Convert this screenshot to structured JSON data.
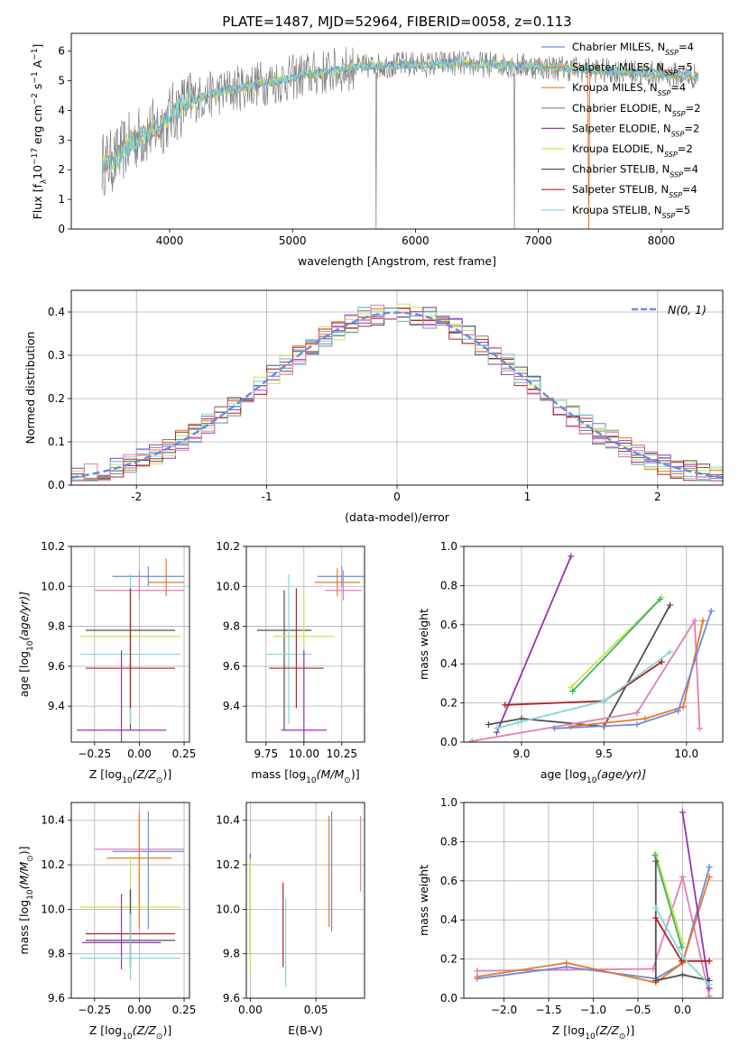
{
  "figure_title": "PLATE=1487, MJD=52964, FIBERID=0058, z=0.113",
  "colors": {
    "chabrier_miles": "#6a8ddb",
    "salpeter_miles": "#e8782a",
    "kroupa_miles": "#e57b2f",
    "chabrier_elodie": "#808080",
    "salpeter_elodie": "#9b32b0",
    "kroupa_elodie": "#c8e64a",
    "chabrier_stelib": "#505050",
    "salpeter_stelib": "#b22222",
    "kroupa_stelib": "#7fd8d8",
    "pink": "#e17fb4",
    "normal_curve": "#6a8ddb",
    "grid": "#b0b0b0"
  },
  "chart_data": [
    {
      "id": "spectrum",
      "type": "line",
      "xlabel": "wavelength [Angstrom, rest frame]",
      "ylabel": "Flux [f",
      "ylabel_lambda": "λ",
      "ylabel_rest": "10",
      "ylabel_exp1": "−17",
      "ylabel_mid": " erg cm",
      "ylabel_exp2": "−2",
      "ylabel_s": " s",
      "ylabel_exp3": "−1",
      "ylabel_a": " A",
      "ylabel_exp4": "−1",
      "ylabel_end": "]",
      "xlim": [
        3200,
        8500
      ],
      "ylim": [
        0,
        6.6
      ],
      "xticks": [
        4000,
        5000,
        6000,
        7000,
        8000
      ],
      "yticks": [
        0,
        1,
        2,
        3,
        4,
        5,
        6
      ],
      "legend_position": "top-right",
      "legend": [
        {
          "name": "Chabrier MILES, N",
          "sub": "SSP",
          "suffix": "=4",
          "color": "#6a8ddb"
        },
        {
          "name": "Salpeter MILES, N",
          "sub": "SSP",
          "suffix": "=5",
          "color": "#e8782a"
        },
        {
          "name": "Kroupa MILES, N",
          "sub": "SSP",
          "suffix": "=4",
          "color": "#e57b2f"
        },
        {
          "name": "Chabrier ELODIE, N",
          "sub": "SSP",
          "suffix": "=2",
          "color": "#808080"
        },
        {
          "name": "Salpeter ELODIE, N",
          "sub": "SSP",
          "suffix": "=2",
          "color": "#9b32b0"
        },
        {
          "name": "Kroupa ELODIE, N",
          "sub": "SSP",
          "suffix": "=2",
          "color": "#c8e64a"
        },
        {
          "name": "Chabrier STELIB, N",
          "sub": "SSP",
          "suffix": "=4",
          "color": "#505050"
        },
        {
          "name": "Salpeter STELIB, N",
          "sub": "SSP",
          "suffix": "=4",
          "color": "#b22222"
        },
        {
          "name": "Kroupa STELIB, N",
          "sub": "SSP",
          "suffix": "=5",
          "color": "#7fd8d8"
        }
      ],
      "continuum": {
        "x": [
          3450,
          3550,
          3650,
          3750,
          3850,
          3950,
          4050,
          4150,
          4300,
          4500,
          4700,
          4900,
          5100,
          5300,
          5500,
          5700,
          5900,
          6100,
          6300,
          6500,
          6700,
          6900,
          7100,
          7300,
          7500,
          7700,
          7900,
          8100,
          8300
        ],
        "y": [
          2.2,
          2.3,
          2.8,
          3.1,
          3.3,
          3.6,
          4.0,
          4.3,
          4.5,
          4.7,
          4.9,
          5.0,
          5.2,
          5.3,
          5.45,
          5.5,
          5.55,
          5.55,
          5.6,
          5.55,
          5.55,
          5.5,
          5.45,
          5.4,
          5.35,
          5.3,
          5.25,
          5.2,
          5.15
        ]
      }
    },
    {
      "id": "residuals",
      "type": "bar",
      "xlabel": "(data-model)/error",
      "ylabel": "Normed distribution",
      "xlim": [
        -2.5,
        2.5
      ],
      "ylim": [
        0,
        0.45
      ],
      "xticks": [
        -2,
        -1,
        0,
        1,
        2
      ],
      "yticks": [
        0.0,
        0.1,
        0.2,
        0.3,
        0.4
      ],
      "legend_position": "top-right",
      "legend": [
        {
          "name": "N(0, 1)",
          "color": "#6a8ddb"
        }
      ]
    },
    {
      "id": "age_vs_Z",
      "type": "scatter",
      "xlabel": "Z [log",
      "xlabel_sub": "10",
      "xlabel_rest": "(Z/Z",
      "xlabel_sun": "⊙",
      "xlabel_end": ")]",
      "ylabel": "age  [log",
      "ylabel_sub": "10",
      "ylabel_rest": "(age/yr)]",
      "xlim": [
        -0.38,
        0.28
      ],
      "ylim": [
        9.22,
        10.2
      ],
      "xticks": [
        -0.25,
        0.0,
        0.25
      ],
      "xticklabels": [
        "−0.25",
        "0.00",
        "0.25"
      ],
      "yticks": [
        9.4,
        9.6,
        9.8,
        10.0,
        10.2
      ],
      "points": [
        {
          "x": 0.05,
          "y": 10.05,
          "xerr": 0.2,
          "yerr": [
            0.05,
            0.05
          ],
          "color": "#6a8ddb"
        },
        {
          "x": 0.15,
          "y": 10.02,
          "xerr": 0.1,
          "yerr": [
            0.07,
            0.12
          ],
          "color": "#e8782a"
        },
        {
          "x": 0.0,
          "y": 9.98,
          "xerr": 0.25,
          "yerr": [
            0.05,
            0.1
          ],
          "color": "#e17fb4"
        },
        {
          "x": -0.05,
          "y": 9.78,
          "xerr": 0.25,
          "yerr": [
            0.5,
            0.2
          ],
          "color": "#505050"
        },
        {
          "x": -0.05,
          "y": 9.75,
          "xerr": 0.28,
          "yerr": [
            0.2,
            0.2
          ],
          "color": "#c8e64a"
        },
        {
          "x": -0.05,
          "y": 9.66,
          "xerr": 0.28,
          "yerr": [
            0.35,
            0.4
          ],
          "color": "#7fd8d8"
        },
        {
          "x": -0.05,
          "y": 9.59,
          "xerr": 0.25,
          "yerr": [
            0.2,
            0.4
          ],
          "color": "#b22222"
        },
        {
          "x": -0.1,
          "y": 9.28,
          "xerr": 0.25,
          "yerr": [
            0.1,
            0.4
          ],
          "color": "#9b32b0"
        }
      ]
    },
    {
      "id": "age_vs_mass",
      "type": "scatter",
      "xlabel": "mass [log",
      "xlabel_sub": "10",
      "xlabel_rest": "(M/M",
      "xlabel_sun": "⊙",
      "xlabel_end": ")]",
      "xlim": [
        9.62,
        10.4
      ],
      "ylim": [
        9.22,
        10.2
      ],
      "xticks": [
        9.75,
        10.0,
        10.25
      ],
      "xticklabels": [
        "9.75",
        "10.00",
        "10.25"
      ],
      "yticks": [
        9.4,
        9.6,
        9.8,
        10.0,
        10.2
      ],
      "points": [
        {
          "x": 10.25,
          "y": 10.05,
          "xerr": 0.16,
          "yerr": [
            0.05,
            0.05
          ],
          "color": "#6a8ddb"
        },
        {
          "x": 10.22,
          "y": 10.02,
          "xerr": 0.15,
          "yerr": [
            0.07,
            0.07
          ],
          "color": "#e8782a"
        },
        {
          "x": 10.26,
          "y": 9.98,
          "xerr": 0.12,
          "yerr": [
            0.05,
            0.1
          ],
          "color": "#e17fb4"
        },
        {
          "x": 9.87,
          "y": 9.78,
          "xerr": 0.18,
          "yerr": [
            0.5,
            0.2
          ],
          "color": "#505050"
        },
        {
          "x": 10.0,
          "y": 9.75,
          "xerr": 0.2,
          "yerr": [
            0.2,
            0.2
          ],
          "color": "#c8e64a"
        },
        {
          "x": 9.9,
          "y": 9.66,
          "xerr": 0.15,
          "yerr": [
            0.35,
            0.4
          ],
          "color": "#7fd8d8"
        },
        {
          "x": 9.95,
          "y": 9.59,
          "xerr": 0.18,
          "yerr": [
            0.2,
            0.4
          ],
          "color": "#b22222"
        },
        {
          "x": 10.0,
          "y": 9.28,
          "xerr": 0.15,
          "yerr": [
            0.1,
            0.4
          ],
          "color": "#9b32b0"
        }
      ]
    },
    {
      "id": "weight_vs_age",
      "type": "line",
      "xlabel": "age  [log",
      "xlabel_sub": "10",
      "xlabel_rest": "(age/yr)]",
      "ylabel": "mass weight",
      "xlim": [
        8.65,
        10.22
      ],
      "ylim": [
        0,
        1.0
      ],
      "xticks": [
        9.0,
        9.5,
        10.0
      ],
      "xticklabels": [
        "9.0",
        "9.5",
        "10.0"
      ],
      "yticks": [
        0.0,
        0.2,
        0.4,
        0.6,
        0.8,
        1.0
      ],
      "series": [
        {
          "color": "#9b32b0",
          "x": [
            8.85,
            9.3
          ],
          "y": [
            0.05,
            0.95
          ]
        },
        {
          "color": "#c8e64a",
          "x": [
            9.3,
            9.85
          ],
          "y": [
            0.28,
            0.74
          ]
        },
        {
          "color": "#3cb371",
          "x": [
            9.31,
            9.84
          ],
          "y": [
            0.26,
            0.73
          ]
        },
        {
          "color": "#505050",
          "x": [
            8.8,
            9.0,
            9.5,
            9.9
          ],
          "y": [
            0.09,
            0.12,
            0.08,
            0.7
          ]
        },
        {
          "color": "#b22222",
          "x": [
            8.9,
            9.5,
            9.85
          ],
          "y": [
            0.19,
            0.21,
            0.41
          ]
        },
        {
          "color": "#7fd8d8",
          "x": [
            8.85,
            8.98,
            9.5,
            9.9
          ],
          "y": [
            0.07,
            0.1,
            0.21,
            0.46
          ]
        },
        {
          "color": "#e17fb4",
          "x": [
            8.7,
            9.7,
            10.05,
            10.08
          ],
          "y": [
            0.005,
            0.15,
            0.62,
            0.07
          ]
        },
        {
          "color": "#e8782a",
          "x": [
            9.3,
            9.75,
            9.98,
            10.1
          ],
          "y": [
            0.08,
            0.12,
            0.18,
            0.62
          ]
        },
        {
          "color": "#6a8ddb",
          "x": [
            9.2,
            9.7,
            9.95,
            10.15
          ],
          "y": [
            0.07,
            0.09,
            0.16,
            0.67
          ]
        }
      ]
    },
    {
      "id": "mass_vs_Z",
      "type": "scatter",
      "xlabel": "Z [log",
      "xlabel_sub": "10",
      "xlabel_rest": "(Z/Z",
      "xlabel_sun": "⊙",
      "xlabel_end": ")]",
      "ylabel": "mass [log",
      "ylabel_sub": "10",
      "ylabel_rest": "(M/M",
      "ylabel_sun": "⊙",
      "ylabel_end": ")]",
      "xlim": [
        -0.38,
        0.28
      ],
      "ylim": [
        9.6,
        10.48
      ],
      "xticks": [
        -0.25,
        0.0,
        0.25
      ],
      "xticklabels": [
        "−0.25",
        "0.00",
        "0.25"
      ],
      "yticks": [
        9.6,
        9.8,
        10.0,
        10.2,
        10.4
      ],
      "points": [
        {
          "x": 0.0,
          "y": 10.27,
          "xerr": 0.25,
          "yerr": [
            0.3,
            0.18
          ],
          "color": "#e17fb4"
        },
        {
          "x": 0.05,
          "y": 10.26,
          "xerr": 0.2,
          "yerr": [
            0.35,
            0.18
          ],
          "color": "#6a8ddb"
        },
        {
          "x": 0.0,
          "y": 10.23,
          "xerr": 0.18,
          "yerr": [
            0.32,
            0.2
          ],
          "color": "#e8782a"
        },
        {
          "x": -0.05,
          "y": 10.01,
          "xerr": 0.28,
          "yerr": [
            0.25,
            0.23
          ],
          "color": "#c8e64a"
        },
        {
          "x": -0.05,
          "y": 9.89,
          "xerr": 0.25,
          "yerr": [
            0.15,
            0.2
          ],
          "color": "#b22222"
        },
        {
          "x": -0.05,
          "y": 9.86,
          "xerr": 0.25,
          "yerr": [
            0.12,
            0.22
          ],
          "color": "#505050"
        },
        {
          "x": -0.1,
          "y": 9.85,
          "xerr": 0.22,
          "yerr": [
            0.12,
            0.22
          ],
          "color": "#9b32b0"
        },
        {
          "x": -0.05,
          "y": 9.78,
          "xerr": 0.28,
          "yerr": [
            0.1,
            0.2
          ],
          "color": "#7fd8d8"
        }
      ]
    },
    {
      "id": "mass_vs_EBV",
      "type": "scatter",
      "xlabel": "E(B-V)",
      "xlim": [
        -0.003,
        0.087
      ],
      "ylim": [
        9.6,
        10.48
      ],
      "xticks": [
        0.0,
        0.05
      ],
      "xticklabels": [
        "0.00",
        "0.05"
      ],
      "yticks": [
        9.6,
        9.8,
        10.0,
        10.2,
        10.4
      ],
      "points": [
        {
          "x": 0.0,
          "y": 10.1,
          "yerr": [
            0.3,
            0.15
          ],
          "color": "#9b32b0"
        },
        {
          "x": 0.0,
          "y": 9.98,
          "yerr": [
            0.25,
            0.25
          ],
          "color": "#c8e64a"
        },
        {
          "x": 0.025,
          "y": 9.92,
          "yerr": [
            0.18,
            0.2
          ],
          "color": "#b22222"
        },
        {
          "x": 0.027,
          "y": 9.85,
          "yerr": [
            0.2,
            0.2
          ],
          "color": "#7fd8d8"
        },
        {
          "x": 0.06,
          "y": 10.17,
          "yerr": [
            0.25,
            0.25
          ],
          "color": "#e8782a"
        },
        {
          "x": 0.062,
          "y": 10.17,
          "yerr": [
            0.27,
            0.27
          ],
          "color": "#6a8ddb"
        },
        {
          "x": 0.084,
          "y": 10.25,
          "yerr": [
            0.17,
            0.17
          ],
          "color": "#e17fb4"
        }
      ]
    },
    {
      "id": "weight_vs_Z",
      "type": "line",
      "xlabel": "Z [log",
      "xlabel_sub": "10",
      "xlabel_rest": "(Z/Z",
      "xlabel_sun": "⊙",
      "xlabel_end": ")]",
      "ylabel": "mass weight",
      "xlim": [
        -2.45,
        0.45
      ],
      "ylim": [
        0,
        1.0
      ],
      "xticks": [
        -2.0,
        -1.5,
        -1.0,
        -0.5,
        0.0
      ],
      "xticklabels": [
        "−2.0",
        "−1.5",
        "−1.0",
        "−0.5",
        "0.0"
      ],
      "yticks": [
        0.0,
        0.2,
        0.4,
        0.6,
        0.8,
        1.0
      ],
      "series": [
        {
          "color": "#e17fb4",
          "x": [
            -2.3,
            -0.33,
            0.0,
            0.3
          ],
          "y": [
            0.14,
            0.15,
            0.62,
            0.01
          ]
        },
        {
          "color": "#6a8ddb",
          "x": [
            -2.3,
            -1.3,
            -0.3,
            0.0,
            0.3
          ],
          "y": [
            0.1,
            0.16,
            0.1,
            0.18,
            0.67
          ]
        },
        {
          "color": "#e8782a",
          "x": [
            -2.3,
            -1.3,
            -0.3,
            0.0,
            0.3
          ],
          "y": [
            0.11,
            0.18,
            0.08,
            0.18,
            0.62
          ]
        },
        {
          "color": "#9b32b0",
          "x": [
            0.0,
            0.3
          ],
          "y": [
            0.95,
            0.05
          ]
        },
        {
          "color": "#c8e64a",
          "x": [
            -0.3,
            0.0
          ],
          "y": [
            0.74,
            0.28
          ]
        },
        {
          "color": "#3cb371",
          "x": [
            -0.31,
            -0.01
          ],
          "y": [
            0.73,
            0.26
          ]
        },
        {
          "color": "#505050",
          "x": [
            -0.3,
            -0.3,
            0.0,
            0.3
          ],
          "y": [
            0.7,
            0.09,
            0.12,
            0.09
          ]
        },
        {
          "color": "#b22222",
          "x": [
            -0.3,
            -0.01,
            0.3
          ],
          "y": [
            0.41,
            0.19,
            0.19
          ]
        },
        {
          "color": "#7fd8d8",
          "x": [
            -0.3,
            0.0,
            0.3
          ],
          "y": [
            0.46,
            0.21,
            0.07
          ]
        }
      ]
    }
  ]
}
